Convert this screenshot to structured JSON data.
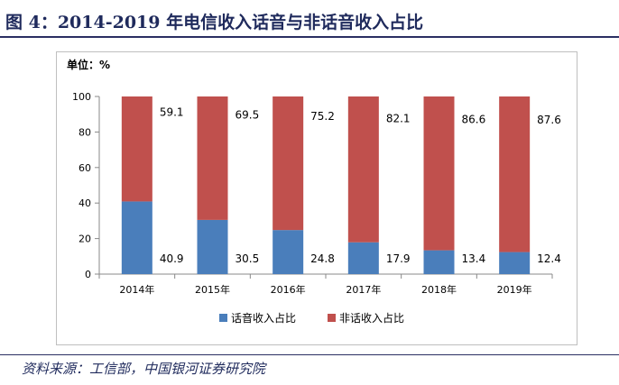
{
  "header": {
    "title": "图 4：2014-2019 年电信收入话音与非话音收入占比"
  },
  "footer": {
    "source": "资料来源：工信部，中国银河证券研究院"
  },
  "chart_data": {
    "type": "bar",
    "stacked": true,
    "unit_label": "单位：%",
    "categories": [
      "2014年",
      "2015年",
      "2016年",
      "2017年",
      "2018年",
      "2019年"
    ],
    "series": [
      {
        "name": "话音收入占比",
        "color": "#4a7ebb",
        "values": [
          40.9,
          30.5,
          24.8,
          17.9,
          13.4,
          12.4
        ]
      },
      {
        "name": "非话收入占比",
        "color": "#c0504d",
        "values": [
          59.1,
          69.5,
          75.2,
          82.1,
          86.6,
          87.6
        ]
      }
    ],
    "yticks": [
      0,
      20,
      40,
      60,
      80,
      100
    ],
    "ylim": [
      0,
      100
    ],
    "grid": false,
    "legend_position": "bottom"
  }
}
